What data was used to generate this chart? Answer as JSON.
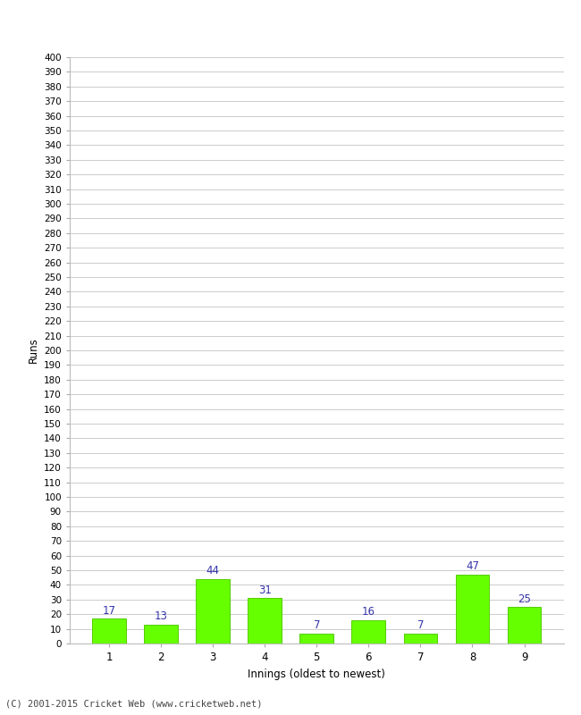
{
  "xlabel": "Innings (oldest to newest)",
  "ylabel": "Runs",
  "categories": [
    "1",
    "2",
    "3",
    "4",
    "5",
    "6",
    "7",
    "8",
    "9"
  ],
  "values": [
    17,
    13,
    44,
    31,
    7,
    16,
    7,
    47,
    25
  ],
  "bar_color": "#66ff00",
  "bar_edge_color": "#55cc00",
  "label_color": "#3333aa",
  "ylim": [
    0,
    400
  ],
  "ytick_step": 10,
  "background_color": "#ffffff",
  "grid_color": "#cccccc",
  "footer": "(C) 2001-2015 Cricket Web (www.cricketweb.net)"
}
